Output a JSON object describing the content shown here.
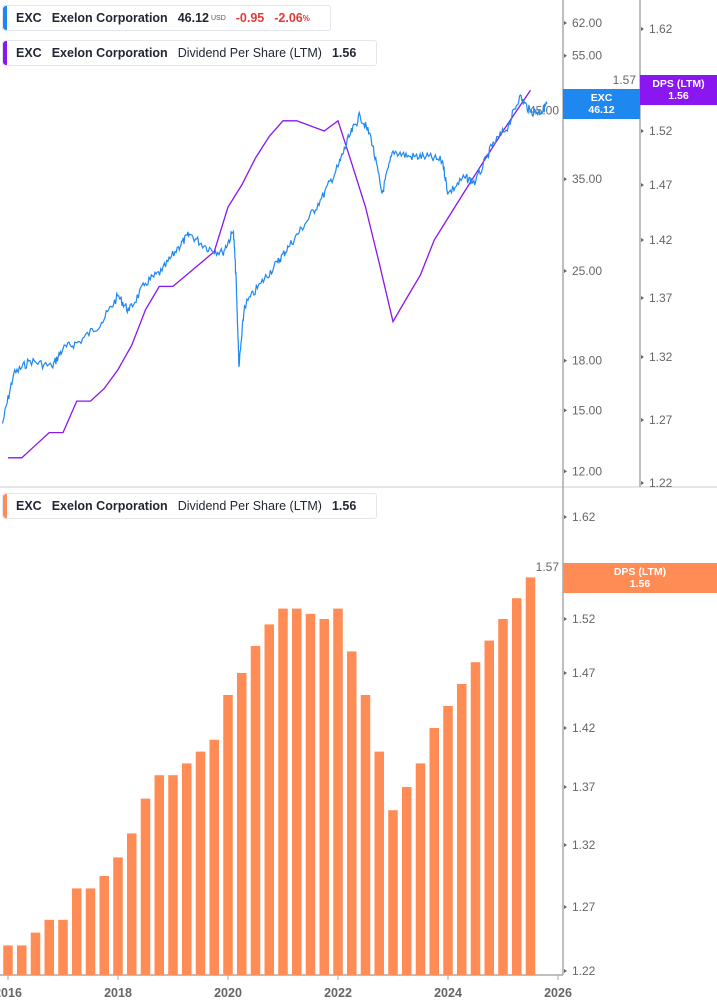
{
  "legend_price": {
    "ticker": "EXC",
    "name": "Exelon Corporation",
    "price": "46.12",
    "currency": "USD",
    "change": "-0.95",
    "change_pct": "-2.06",
    "pct_sign": "%",
    "color": "#1e88f0"
  },
  "legend_dps_top": {
    "ticker": "EXC",
    "name": "Exelon Corporation",
    "metric": "Dividend Per Share (LTM)",
    "value": "1.56",
    "color": "#8a16f0"
  },
  "legend_dps_bottom": {
    "ticker": "EXC",
    "name": "Exelon Corporation",
    "metric": "Dividend Per Share (LTM)",
    "value": "1.56",
    "color": "#ff8c55"
  },
  "tags": {
    "price": {
      "label": "EXC",
      "value": "46.12",
      "color": "#1e88f0"
    },
    "dps_top": {
      "label": "DPS (LTM)",
      "value": "1.56",
      "color": "#8a16f0"
    },
    "dps_bottom": {
      "label": "DPS (LTM)",
      "value": "1.56",
      "color": "#ff8c55"
    }
  },
  "chart_data": [
    {
      "type": "line",
      "pane": "top",
      "y_scale": "log",
      "price_axis_ticks": [
        "62.00",
        "55.00",
        "45.00",
        "35.00",
        "25.00",
        "18.00",
        "15.00",
        "12.00"
      ],
      "dps_axis_ticks": [
        "1.62",
        "1.57",
        "1.52",
        "1.47",
        "1.42",
        "1.37",
        "1.32",
        "1.27",
        "1.22"
      ],
      "series": [
        {
          "name": "EXC",
          "color": "#1e88f0",
          "x": [
            2015.9,
            2016.1,
            2016.4,
            2016.8,
            2017.0,
            2017.3,
            2017.7,
            2018.0,
            2018.2,
            2018.5,
            2018.8,
            2019.1,
            2019.3,
            2019.6,
            2019.9,
            2020.1,
            2020.15,
            2020.2,
            2020.3,
            2020.6,
            2020.9,
            2021.1,
            2021.4,
            2021.7,
            2022.0,
            2022.2,
            2022.4,
            2022.6,
            2022.8,
            2023.0,
            2023.3,
            2023.6,
            2023.9,
            2024.0,
            2024.3,
            2024.5,
            2024.8,
            2025.1,
            2025.3,
            2025.5,
            2025.7,
            2025.8
          ],
          "y": [
            14.3,
            17.1,
            18.0,
            17.6,
            18.8,
            19.3,
            20.7,
            22.8,
            21.6,
            23.9,
            25.0,
            27.3,
            28.6,
            27.3,
            26.7,
            28.9,
            23.9,
            17.6,
            22.0,
            23.9,
            25.8,
            27.3,
            29.7,
            32.6,
            36.6,
            40.8,
            44.2,
            40.8,
            33.2,
            38.8,
            38.0,
            38.0,
            37.4,
            33.2,
            35.2,
            34.6,
            39.5,
            42.6,
            47.4,
            44.8,
            44.8,
            46.12
          ]
        },
        {
          "name": "DPS (LTM)",
          "color": "#8a16f0",
          "source": "dps_quarterly"
        }
      ]
    },
    {
      "type": "bar",
      "pane": "bottom",
      "name": "DPS (LTM)",
      "color": "#ff8c55",
      "y_axis_ticks": [
        "1.62",
        "1.57",
        "1.52",
        "1.47",
        "1.42",
        "1.37",
        "1.32",
        "1.27",
        "1.22"
      ],
      "x_ticks": [
        "2016",
        "2018",
        "2020",
        "2022",
        "2024",
        "2026"
      ],
      "categories": [
        "2016Q1",
        "2016Q2",
        "2016Q3",
        "2016Q4",
        "2017Q1",
        "2017Q2",
        "2017Q3",
        "2017Q4",
        "2018Q1",
        "2018Q2",
        "2018Q3",
        "2018Q4",
        "2019Q1",
        "2019Q2",
        "2019Q3",
        "2019Q4",
        "2020Q1",
        "2020Q2",
        "2020Q3",
        "2020Q4",
        "2021Q1",
        "2021Q2",
        "2021Q3",
        "2021Q4",
        "2022Q1",
        "2022Q2",
        "2022Q3",
        "2022Q4",
        "2023Q1",
        "2023Q2",
        "2023Q3",
        "2023Q4",
        "2024Q1",
        "2024Q2",
        "2024Q3",
        "2024Q4",
        "2025Q1",
        "2025Q2",
        "2025Q3"
      ],
      "values": [
        1.24,
        1.24,
        1.25,
        1.26,
        1.26,
        1.285,
        1.285,
        1.295,
        1.31,
        1.33,
        1.36,
        1.38,
        1.38,
        1.39,
        1.4,
        1.41,
        1.45,
        1.47,
        1.495,
        1.515,
        1.53,
        1.53,
        1.525,
        1.52,
        1.53,
        1.49,
        1.45,
        1.4,
        1.35,
        1.37,
        1.39,
        1.42,
        1.44,
        1.46,
        1.48,
        1.5,
        1.52,
        1.54,
        1.56
      ]
    }
  ]
}
